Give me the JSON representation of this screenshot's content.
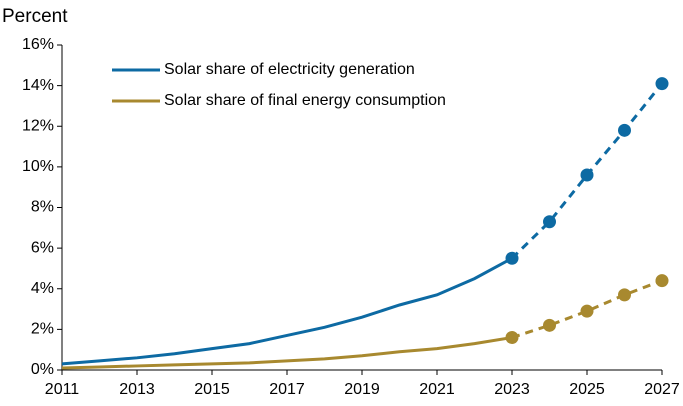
{
  "chart_data": {
    "type": "line",
    "y_label": "Percent",
    "x": [
      2011,
      2012,
      2013,
      2014,
      2015,
      2016,
      2017,
      2018,
      2019,
      2020,
      2021,
      2022,
      2023,
      2024,
      2025,
      2026,
      2027
    ],
    "series": [
      {
        "name": "Solar share of electricity generation",
        "color": "#0d6aa3",
        "dashed": false,
        "markers": false,
        "values": [
          0.3,
          0.45,
          0.6,
          0.8,
          1.05,
          1.3,
          1.7,
          2.1,
          2.6,
          3.2,
          3.7,
          4.5,
          5.5,
          null,
          null,
          null,
          null
        ]
      },
      {
        "name": "Solar share of final energy consumption",
        "color": "#a8892f",
        "dashed": false,
        "markers": false,
        "values": [
          0.1,
          0.15,
          0.2,
          0.25,
          0.3,
          0.35,
          0.45,
          0.55,
          0.7,
          0.9,
          1.05,
          1.3,
          1.6,
          null,
          null,
          null,
          null
        ]
      },
      {
        "color": "#0d6aa3",
        "dashed": true,
        "markers": true,
        "values": [
          null,
          null,
          null,
          null,
          null,
          null,
          null,
          null,
          null,
          null,
          null,
          null,
          5.5,
          7.3,
          9.6,
          11.8,
          14.1
        ]
      },
      {
        "color": "#a8892f",
        "dashed": true,
        "markers": true,
        "values": [
          null,
          null,
          null,
          null,
          null,
          null,
          null,
          null,
          null,
          null,
          null,
          null,
          1.6,
          2.2,
          2.9,
          3.7,
          4.4
        ]
      }
    ],
    "xlim": [
      2011,
      2027
    ],
    "xticks": [
      2011,
      2013,
      2015,
      2017,
      2019,
      2021,
      2023,
      2025,
      2027
    ],
    "ylim": [
      0,
      16
    ],
    "yticks": [
      {
        "value": 0,
        "label": "0%"
      },
      {
        "value": 2,
        "label": "2%"
      },
      {
        "value": 4,
        "label": "4%"
      },
      {
        "value": 6,
        "label": "6%"
      },
      {
        "value": 8,
        "label": "8%"
      },
      {
        "value": 10,
        "label": "10%"
      },
      {
        "value": 12,
        "label": "12%"
      },
      {
        "value": 14,
        "label": "14%"
      },
      {
        "value": 16,
        "label": "16%"
      }
    ],
    "grid": false,
    "legend": "upper left"
  }
}
